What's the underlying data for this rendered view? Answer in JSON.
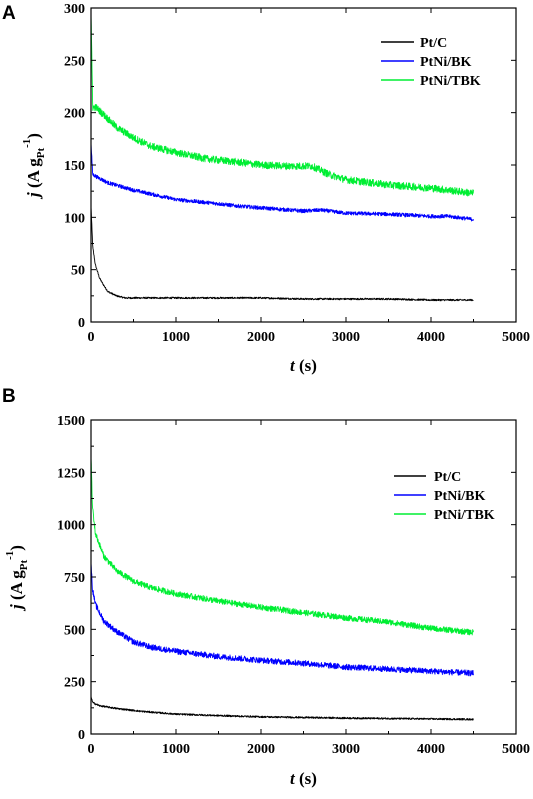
{
  "chart_data": [
    {
      "panel_label": "A",
      "type": "line",
      "xlabel": "t (s)",
      "ylabel": "j (A g_Pt^-1)",
      "xlim": [
        0,
        5000
      ],
      "ylim": [
        0,
        300
      ],
      "xticks": [
        0,
        1000,
        2000,
        3000,
        4000,
        5000
      ],
      "yticks": [
        0,
        50,
        100,
        150,
        200,
        250,
        300
      ],
      "grid": false,
      "legend_position": "top-right",
      "series": [
        {
          "name": "Pt/C",
          "color": "#000000",
          "noise": 0.8,
          "x": [
            0,
            20,
            50,
            100,
            150,
            200,
            300,
            400,
            600,
            800,
            1000,
            1500,
            2000,
            2500,
            3000,
            3500,
            4000,
            4500
          ],
          "y": [
            110,
            72,
            55,
            42,
            35,
            29,
            25,
            23,
            23,
            23,
            23,
            23,
            23,
            22,
            22,
            22,
            21,
            21
          ]
        },
        {
          "name": "PtNi/BK",
          "color": "#0000ff",
          "noise": 1.8,
          "x": [
            0,
            20,
            60,
            200,
            500,
            1000,
            1500,
            1700,
            2000,
            2500,
            2700,
            3000,
            3500,
            4000,
            4200,
            4500
          ],
          "y": [
            170,
            141,
            139,
            133,
            126,
            117,
            113,
            111,
            109,
            106,
            107,
            104,
            103,
            101,
            101,
            98
          ]
        },
        {
          "name": "PtNi/TBK",
          "color": "#00ee33",
          "noise": 3.5,
          "x": [
            0,
            20,
            60,
            150,
            300,
            500,
            700,
            1000,
            1350,
            1700,
            2000,
            2300,
            2600,
            2800,
            3000,
            3500,
            4000,
            4500
          ],
          "y": [
            295,
            205,
            205,
            198,
            186,
            176,
            168,
            162,
            156,
            153,
            150,
            149,
            149,
            141,
            136,
            131,
            128,
            123
          ]
        }
      ]
    },
    {
      "panel_label": "B",
      "type": "line",
      "xlabel": "t (s)",
      "ylabel": "j (A g_Pt^-1)",
      "xlim": [
        0,
        5000
      ],
      "ylim": [
        0,
        1500
      ],
      "xticks": [
        0,
        1000,
        2000,
        3000,
        4000,
        5000
      ],
      "yticks": [
        0,
        250,
        500,
        750,
        1000,
        1250,
        1500
      ],
      "grid": false,
      "legend_position": "top-right",
      "series": [
        {
          "name": "Pt/C",
          "color": "#000000",
          "noise": 4,
          "x": [
            0,
            20,
            100,
            300,
            600,
            1000,
            1500,
            2000,
            3000,
            4000,
            4500
          ],
          "y": [
            180,
            150,
            135,
            122,
            108,
            95,
            88,
            82,
            76,
            72,
            70
          ]
        },
        {
          "name": "PtNi/BK",
          "color": "#0000ff",
          "noise": 14,
          "x": [
            0,
            15,
            50,
            150,
            300,
            500,
            700,
            1000,
            1500,
            2000,
            2500,
            3000,
            3500,
            4000,
            4500
          ],
          "y": [
            830,
            700,
            620,
            540,
            490,
            440,
            415,
            395,
            370,
            352,
            338,
            320,
            310,
            300,
            290
          ]
        },
        {
          "name": "PtNi/TBK",
          "color": "#00ee33",
          "noise": 14,
          "x": [
            0,
            15,
            50,
            150,
            300,
            500,
            700,
            1000,
            1500,
            2000,
            2500,
            3000,
            3500,
            4000,
            4500
          ],
          "y": [
            1330,
            1100,
            960,
            850,
            780,
            730,
            700,
            670,
            635,
            605,
            580,
            555,
            535,
            505,
            485
          ]
        }
      ]
    }
  ]
}
